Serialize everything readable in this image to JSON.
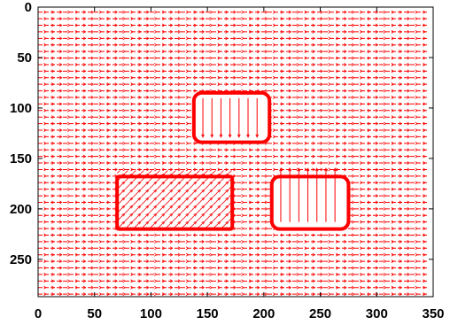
{
  "chart_data": {
    "type": "vector-field",
    "xlim": [
      0,
      350
    ],
    "ylim": [
      0,
      287
    ],
    "y_inverted": true,
    "grid": false,
    "legend": "none",
    "xticks": [
      "0",
      "50",
      "100",
      "150",
      "200",
      "250",
      "300",
      "350"
    ],
    "yticks": [
      "0",
      "50",
      "100",
      "150",
      "200",
      "250"
    ],
    "xtick_values": [
      0,
      50,
      100,
      150,
      200,
      250,
      300,
      350
    ],
    "ytick_values": [
      0,
      50,
      100,
      150,
      200,
      250
    ],
    "color": "#ff0000",
    "background_field": {
      "direction": "right",
      "x_range": [
        0,
        345
      ],
      "y_start": 5,
      "y_step": 6.5,
      "count": 44
    },
    "regions": [
      {
        "shape": "rounded-rectangle",
        "x": [
          138,
          205
        ],
        "y": [
          85,
          134
        ],
        "arrow_direction": "down",
        "arrow_x": [
          146,
          154,
          162,
          170,
          178,
          186,
          194
        ]
      },
      {
        "shape": "rectangle",
        "x": [
          70,
          172
        ],
        "y": [
          168,
          220
        ],
        "arrow_direction": "up-right",
        "arrow_pattern": "diagonal hatch"
      },
      {
        "shape": "rounded-rectangle",
        "x": [
          207,
          275
        ],
        "y": [
          168,
          220
        ],
        "arrow_direction": "up",
        "arrow_x": [
          215,
          223,
          231,
          239,
          247,
          255,
          263
        ],
        "arrow_y_range": [
          213,
          160
        ]
      }
    ]
  }
}
